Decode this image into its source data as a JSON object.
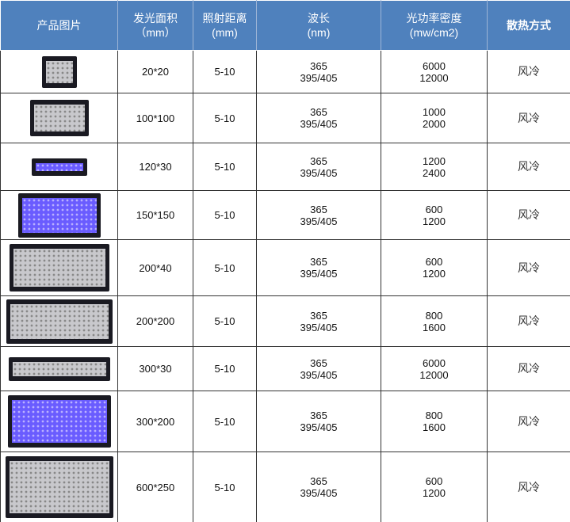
{
  "header": {
    "image": "产品图片",
    "area": [
      "发光面积",
      "（mm）"
    ],
    "distance": [
      "照射距离",
      "(mm)"
    ],
    "wavelength": [
      "波长",
      "(nm)"
    ],
    "power": [
      "光功率密度",
      "(mw/cm2)"
    ],
    "cooling": "散热方式"
  },
  "rows": [
    {
      "area": "20*20",
      "distance": "5-10",
      "wl1": "365",
      "wl2": "395/405",
      "p1": "6000",
      "p2": "12000",
      "cooling": "风冷"
    },
    {
      "area": "100*100",
      "distance": "5-10",
      "wl1": "365",
      "wl2": "395/405",
      "p1": "1000",
      "p2": "2000",
      "cooling": "风冷"
    },
    {
      "area": "120*30",
      "distance": "5-10",
      "wl1": "365",
      "wl2": "395/405",
      "p1": "1200",
      "p2": "2400",
      "cooling": "风冷"
    },
    {
      "area": "150*150",
      "distance": "5-10",
      "wl1": "365",
      "wl2": "395/405",
      "p1": "600",
      "p2": "1200",
      "cooling": "风冷"
    },
    {
      "area": "200*40",
      "distance": "5-10",
      "wl1": "365",
      "wl2": "395/405",
      "p1": "600",
      "p2": "1200",
      "cooling": "风冷"
    },
    {
      "area": "200*200",
      "distance": "5-10",
      "wl1": "365",
      "wl2": "395/405",
      "p1": "800",
      "p2": "1600",
      "cooling": "风冷"
    },
    {
      "area": "300*30",
      "distance": "5-10",
      "wl1": "365",
      "wl2": "395/405",
      "p1": "6000",
      "p2": "12000",
      "cooling": "风冷"
    },
    {
      "area": "300*200",
      "distance": "5-10",
      "wl1": "365",
      "wl2": "395/405",
      "p1": "800",
      "p2": "1600",
      "cooling": "风冷"
    },
    {
      "area": "600*250",
      "distance": "5-10",
      "wl1": "365",
      "wl2": "395/405",
      "p1": "600",
      "p2": "1200",
      "cooling": "风冷"
    }
  ],
  "colors": {
    "header_bg": "#4f81bd",
    "header_text": "#ffffff"
  }
}
